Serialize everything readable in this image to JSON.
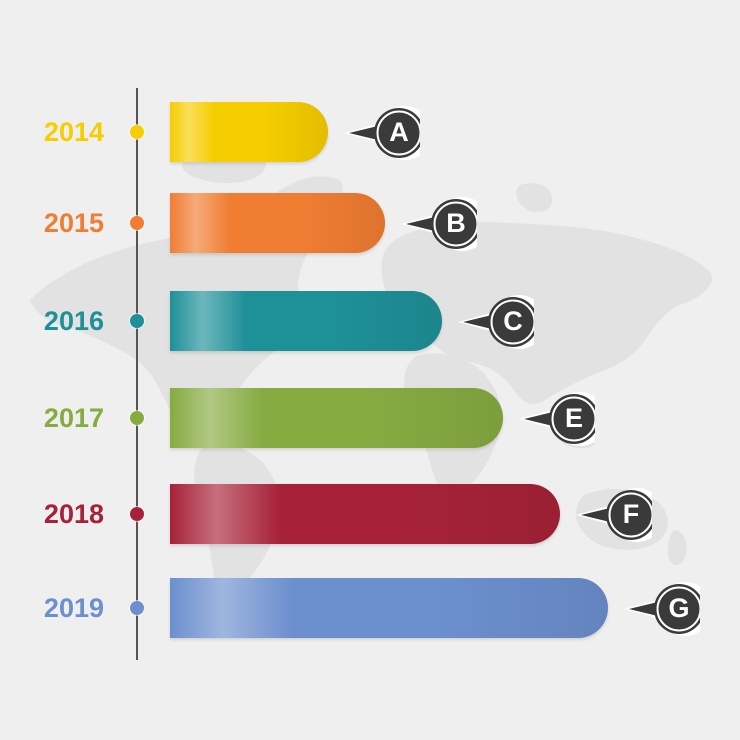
{
  "timeline": {
    "items": [
      {
        "year": "2014",
        "letter": "A",
        "color": "#f6cd00",
        "value": 0.36
      },
      {
        "year": "2015",
        "letter": "B",
        "color": "#f07d32",
        "value": 0.49
      },
      {
        "year": "2016",
        "letter": "C",
        "color": "#1e9098",
        "value": 0.62
      },
      {
        "year": "2017",
        "letter": "E",
        "color": "#86ab41",
        "value": 0.76
      },
      {
        "year": "2018",
        "letter": "F",
        "color": "#a72238",
        "value": 0.89
      },
      {
        "year": "2019",
        "letter": "G",
        "color": "#6c8fce",
        "value": 1.0
      }
    ]
  }
}
